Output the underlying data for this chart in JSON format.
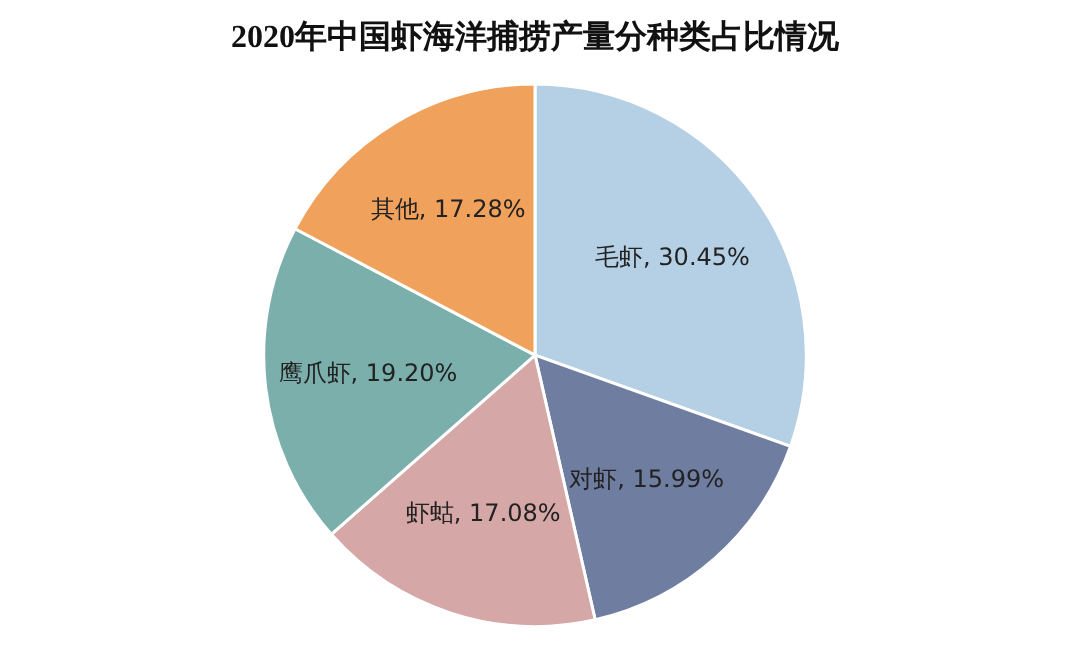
{
  "chart_data": {
    "type": "pie",
    "title": "2020年中国虾海洋捕捞产量分种类占比情况",
    "categories": [
      "毛虾",
      "对虾",
      "虾蛄",
      "鹰爪虾",
      "其他"
    ],
    "values": [
      30.45,
      15.99,
      17.08,
      19.2,
      17.28
    ],
    "colors": [
      "#b5d0e4",
      "#6f7da0",
      "#d5a7a7",
      "#7bafab",
      "#f0a15c"
    ],
    "value_labels": [
      "30.45%",
      "15.99%",
      "17.08%",
      "19.20%",
      "17.28%"
    ],
    "legend": false
  }
}
